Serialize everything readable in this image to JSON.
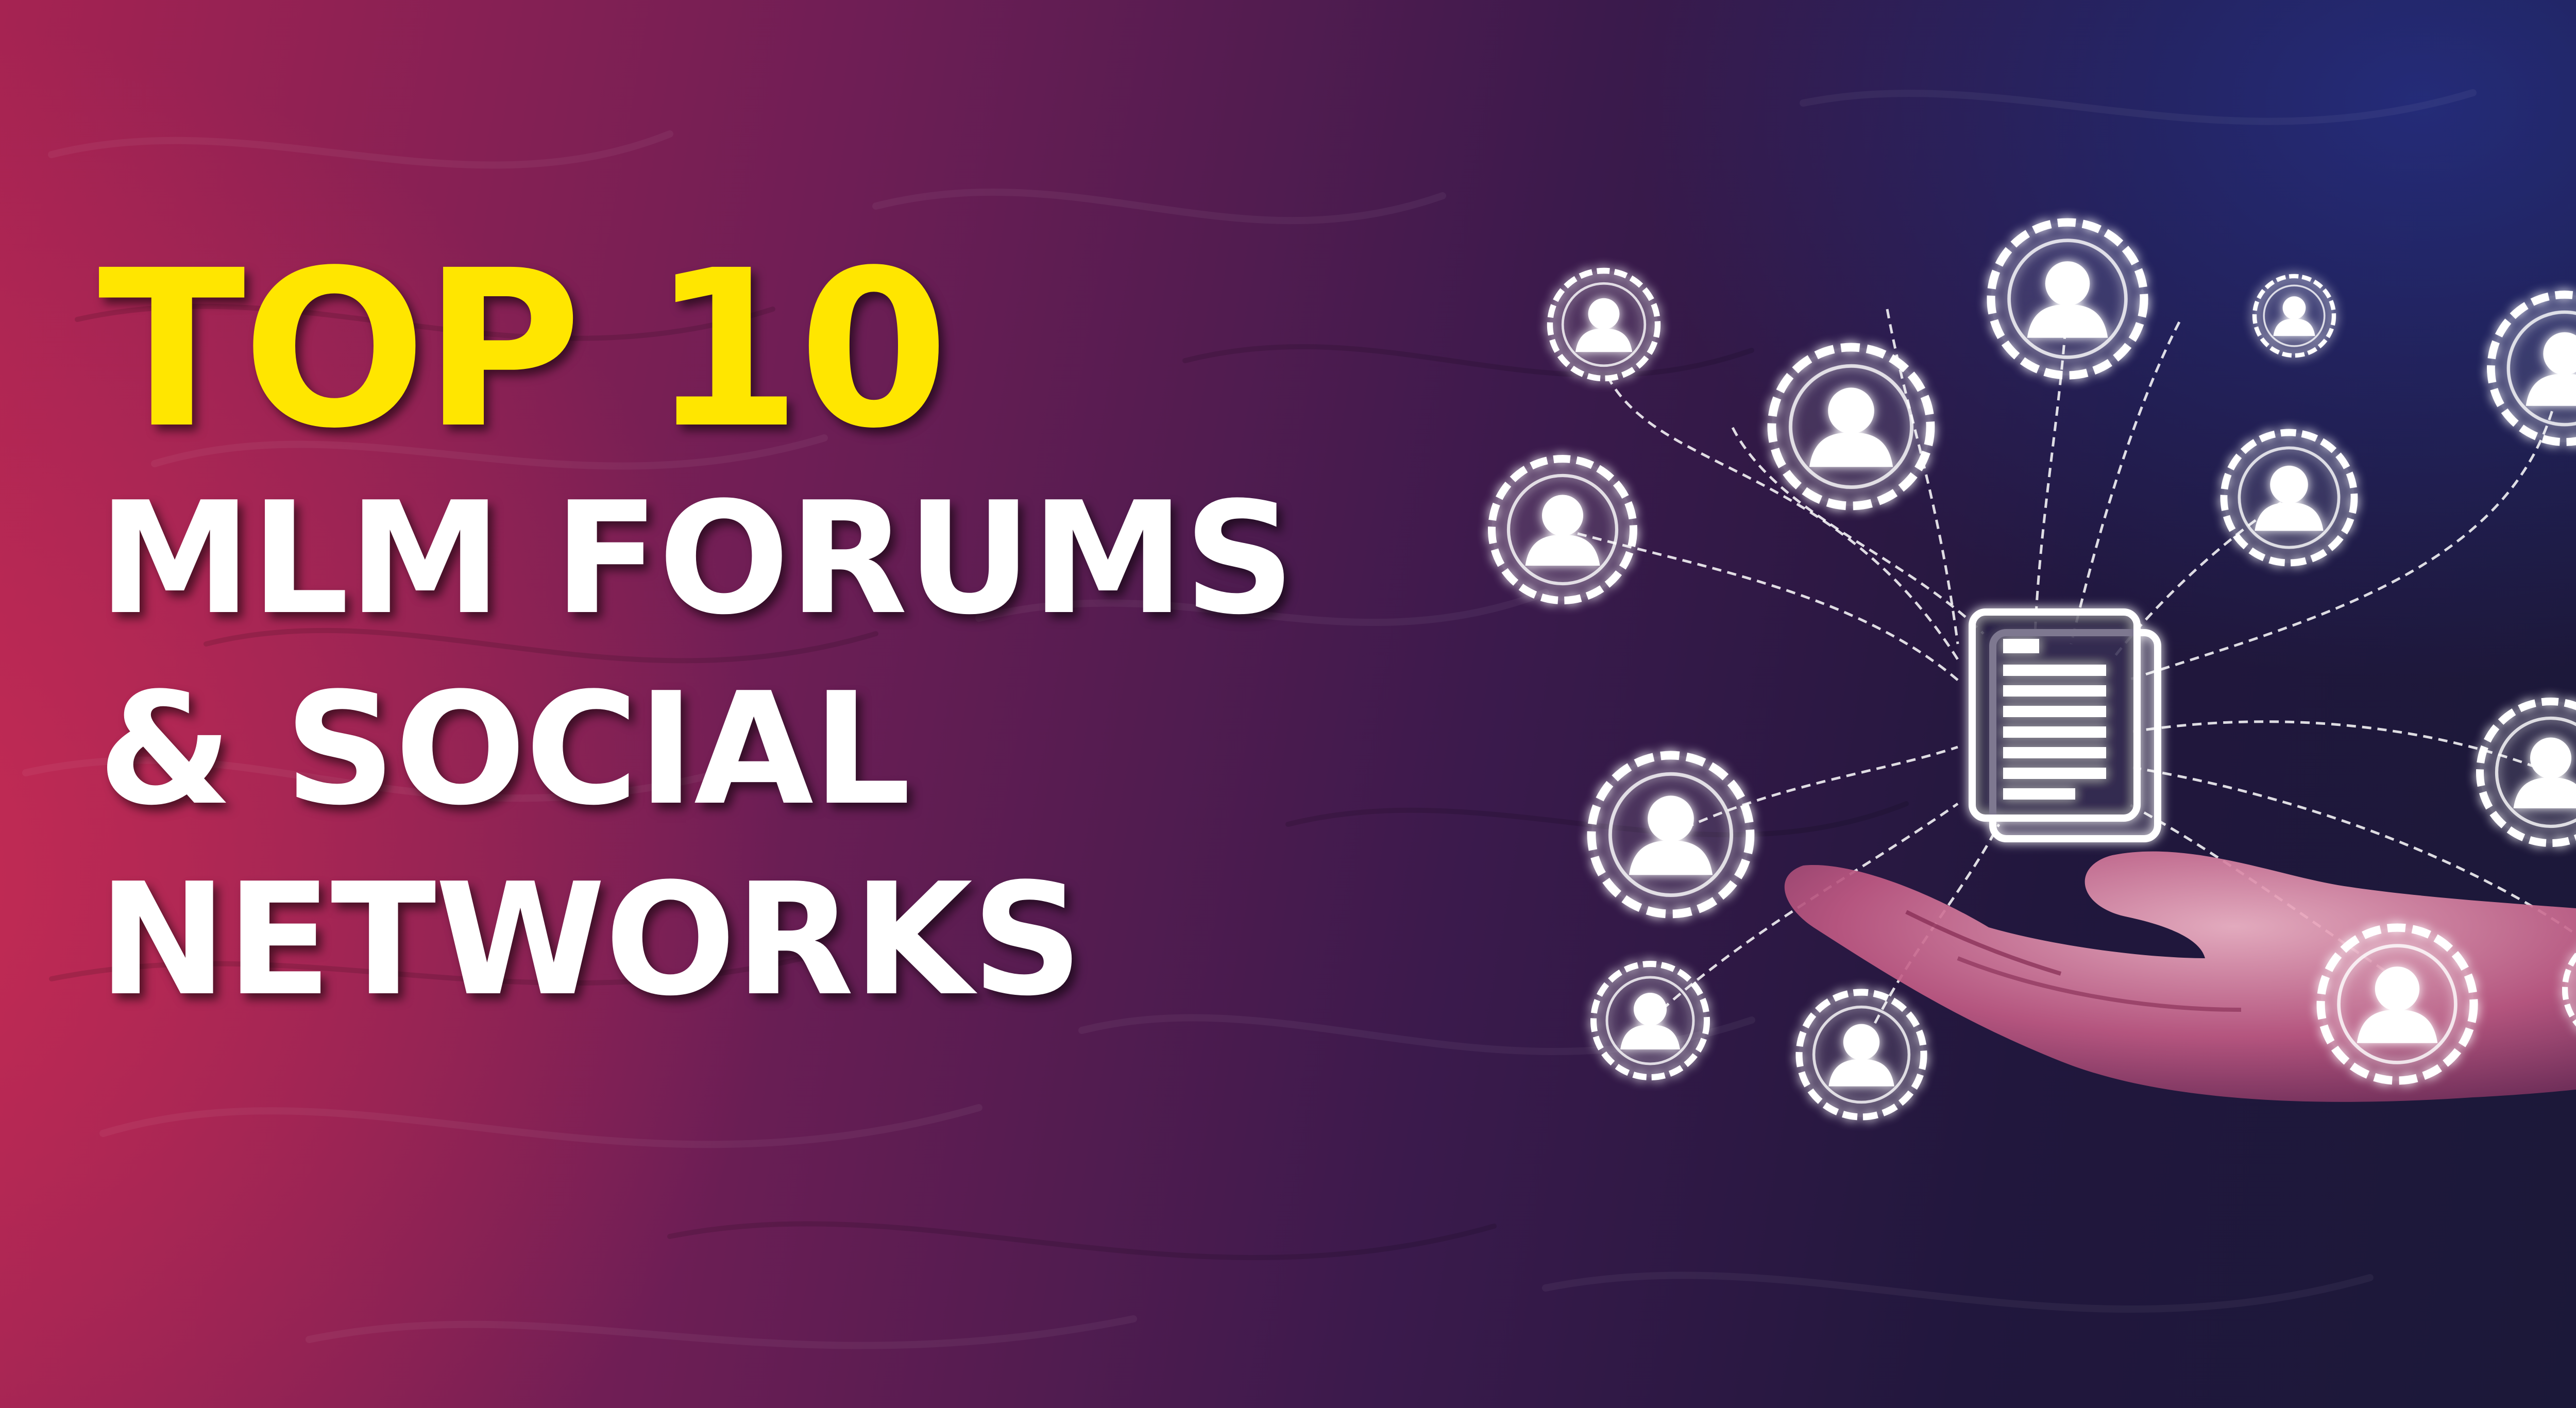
{
  "headline": {
    "top": "TOP 10",
    "line1": "MLM FORUMS",
    "line2": "& SOCIAL",
    "line3": "NETWORKS"
  },
  "colors": {
    "accent_yellow": "#ffe600",
    "text_white": "#ffffff",
    "bg_magenta": "#a62352",
    "bg_navy": "#1a1838"
  },
  "illustration": {
    "center_icon": "document-icon",
    "node_icon": "user-avatar-icon",
    "node_count": 14,
    "connector_style": "dashed"
  }
}
